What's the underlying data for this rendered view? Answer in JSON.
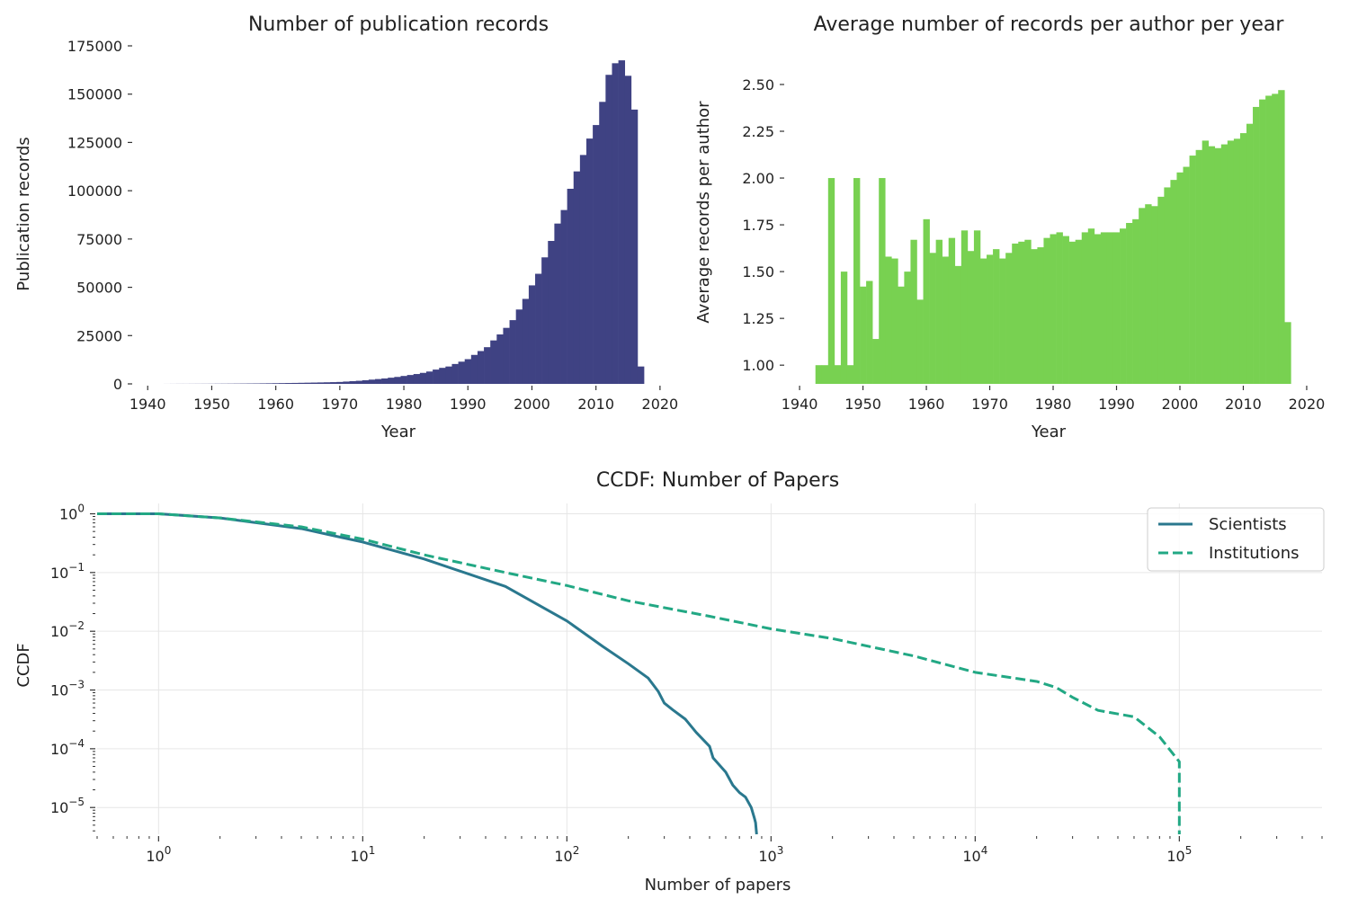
{
  "chart_data": [
    {
      "type": "bar",
      "title": "Number of publication records",
      "xlabel": "Year",
      "ylabel": "Publication records",
      "color": "#3f4283",
      "xlim": [
        1938,
        2021
      ],
      "ylim": [
        0,
        175000
      ],
      "xticks": [
        "1940",
        "1950",
        "1960",
        "1970",
        "1980",
        "1990",
        "2000",
        "2010",
        "2020"
      ],
      "yticks": [
        "0",
        "25000",
        "50000",
        "75000",
        "100000",
        "125000",
        "150000",
        "175000"
      ],
      "categories": [
        1943,
        1944,
        1945,
        1946,
        1947,
        1948,
        1949,
        1950,
        1951,
        1952,
        1953,
        1954,
        1955,
        1956,
        1957,
        1958,
        1959,
        1960,
        1961,
        1962,
        1963,
        1964,
        1965,
        1966,
        1967,
        1968,
        1969,
        1970,
        1971,
        1972,
        1973,
        1974,
        1975,
        1976,
        1977,
        1978,
        1979,
        1980,
        1981,
        1982,
        1983,
        1984,
        1985,
        1986,
        1987,
        1988,
        1989,
        1990,
        1991,
        1992,
        1993,
        1994,
        1995,
        1996,
        1997,
        1998,
        1999,
        2000,
        2001,
        2002,
        2003,
        2004,
        2005,
        2006,
        2007,
        2008,
        2009,
        2010,
        2011,
        2012,
        2013,
        2014,
        2015,
        2016,
        2017
      ],
      "values": [
        20,
        30,
        40,
        40,
        50,
        60,
        70,
        80,
        100,
        110,
        130,
        150,
        170,
        200,
        220,
        260,
        300,
        350,
        400,
        450,
        500,
        560,
        620,
        680,
        750,
        820,
        900,
        1000,
        1200,
        1400,
        1600,
        1900,
        2200,
        2500,
        2800,
        3200,
        3600,
        4100,
        4600,
        5100,
        5700,
        6400,
        7400,
        8300,
        9000,
        10300,
        11500,
        12800,
        15000,
        17000,
        19000,
        22500,
        25600,
        29000,
        33000,
        38500,
        44000,
        51000,
        57000,
        65500,
        74000,
        83000,
        90000,
        101000,
        110000,
        118500,
        127000,
        134000,
        146000,
        160000,
        166000,
        167500,
        159500,
        142000,
        9000
      ]
    },
    {
      "type": "bar",
      "title": "Average number of records per author per year",
      "xlabel": "Year",
      "ylabel": "Average records per author",
      "color": "#78d151",
      "xlim": [
        1938,
        2021
      ],
      "ylim": [
        0.9,
        2.62
      ],
      "xticks": [
        "1940",
        "1950",
        "1960",
        "1970",
        "1980",
        "1990",
        "2000",
        "2010",
        "2020"
      ],
      "yticks": [
        "1.00",
        "1.25",
        "1.50",
        "1.75",
        "2.00",
        "2.25",
        "2.50"
      ],
      "categories": [
        1943,
        1944,
        1945,
        1946,
        1947,
        1948,
        1949,
        1950,
        1951,
        1952,
        1953,
        1954,
        1955,
        1956,
        1957,
        1958,
        1959,
        1960,
        1961,
        1962,
        1963,
        1964,
        1965,
        1966,
        1967,
        1968,
        1969,
        1970,
        1971,
        1972,
        1973,
        1974,
        1975,
        1976,
        1977,
        1978,
        1979,
        1980,
        1981,
        1982,
        1983,
        1984,
        1985,
        1986,
        1987,
        1988,
        1989,
        1990,
        1991,
        1992,
        1993,
        1994,
        1995,
        1996,
        1997,
        1998,
        1999,
        2000,
        2001,
        2002,
        2003,
        2004,
        2005,
        2006,
        2007,
        2008,
        2009,
        2010,
        2011,
        2012,
        2013,
        2014,
        2015,
        2016,
        2017
      ],
      "values": [
        1.0,
        1.0,
        2.0,
        1.0,
        1.5,
        1.0,
        2.0,
        1.42,
        1.45,
        1.14,
        2.0,
        1.58,
        1.57,
        1.42,
        1.5,
        1.67,
        1.35,
        1.78,
        1.6,
        1.67,
        1.58,
        1.68,
        1.53,
        1.72,
        1.61,
        1.72,
        1.57,
        1.59,
        1.62,
        1.57,
        1.6,
        1.65,
        1.66,
        1.67,
        1.62,
        1.63,
        1.68,
        1.7,
        1.71,
        1.69,
        1.66,
        1.67,
        1.71,
        1.73,
        1.7,
        1.71,
        1.71,
        1.71,
        1.73,
        1.76,
        1.78,
        1.84,
        1.86,
        1.85,
        1.9,
        1.95,
        1.99,
        2.03,
        2.06,
        2.12,
        2.15,
        2.2,
        2.17,
        2.16,
        2.18,
        2.2,
        2.21,
        2.24,
        2.29,
        2.38,
        2.42,
        2.44,
        2.45,
        2.47,
        1.23
      ]
    },
    {
      "type": "line",
      "title": "CCDF: Number of Papers",
      "xlabel": "Number of papers",
      "ylabel": "CCDF",
      "xscale": "log",
      "yscale": "log",
      "xlim": [
        0.5,
        500000
      ],
      "ylim": [
        3.5e-06,
        1.5
      ],
      "grid": true,
      "legend_position": "top-right",
      "xtick_labels": [
        {
          "base": "10",
          "exp": "0",
          "value": 1
        },
        {
          "base": "10",
          "exp": "1",
          "value": 10
        },
        {
          "base": "10",
          "exp": "2",
          "value": 100
        },
        {
          "base": "10",
          "exp": "3",
          "value": 1000
        },
        {
          "base": "10",
          "exp": "4",
          "value": 10000
        },
        {
          "base": "10",
          "exp": "5",
          "value": 100000
        }
      ],
      "ytick_labels": [
        {
          "base": "10",
          "exp": "0",
          "value": 1
        },
        {
          "base": "10",
          "exp": "−1",
          "value": 0.1
        },
        {
          "base": "10",
          "exp": "−2",
          "value": 0.01
        },
        {
          "base": "10",
          "exp": "−3",
          "value": 0.001
        },
        {
          "base": "10",
          "exp": "−4",
          "value": 0.0001
        },
        {
          "base": "10",
          "exp": "−5",
          "value": 1e-05
        }
      ],
      "series": [
        {
          "name": "Scientists",
          "color": "#2a788e",
          "style": "solid",
          "x": [
            0.5,
            1,
            2,
            5,
            10,
            20,
            50,
            100,
            150,
            200,
            250,
            280,
            300,
            330,
            380,
            430,
            500,
            520,
            600,
            650,
            700,
            750,
            800,
            830,
            840,
            850
          ],
          "y": [
            1,
            1,
            0.85,
            0.56,
            0.33,
            0.17,
            0.058,
            0.015,
            0.0055,
            0.0028,
            0.0016,
            0.00095,
            0.0006,
            0.00046,
            0.00032,
            0.00019,
            0.00011,
            7e-05,
            4e-05,
            2.4e-05,
            1.8e-05,
            1.5e-05,
            1e-05,
            6.5e-06,
            5.5e-06,
            3.5e-06
          ]
        },
        {
          "name": "Institutions",
          "color": "#22a884",
          "style": "dashed",
          "x": [
            0.5,
            1,
            2,
            5,
            10,
            20,
            50,
            100,
            200,
            500,
            1000,
            2000,
            5000,
            10000,
            20000,
            25000,
            30000,
            40000,
            60000,
            80000,
            100000,
            100000
          ],
          "y": [
            1,
            1,
            0.85,
            0.6,
            0.37,
            0.2,
            0.1,
            0.06,
            0.033,
            0.018,
            0.011,
            0.0075,
            0.0038,
            0.002,
            0.0014,
            0.0011,
            0.00075,
            0.00045,
            0.00035,
            0.00016,
            6e-05,
            3.5e-06
          ]
        }
      ]
    }
  ]
}
